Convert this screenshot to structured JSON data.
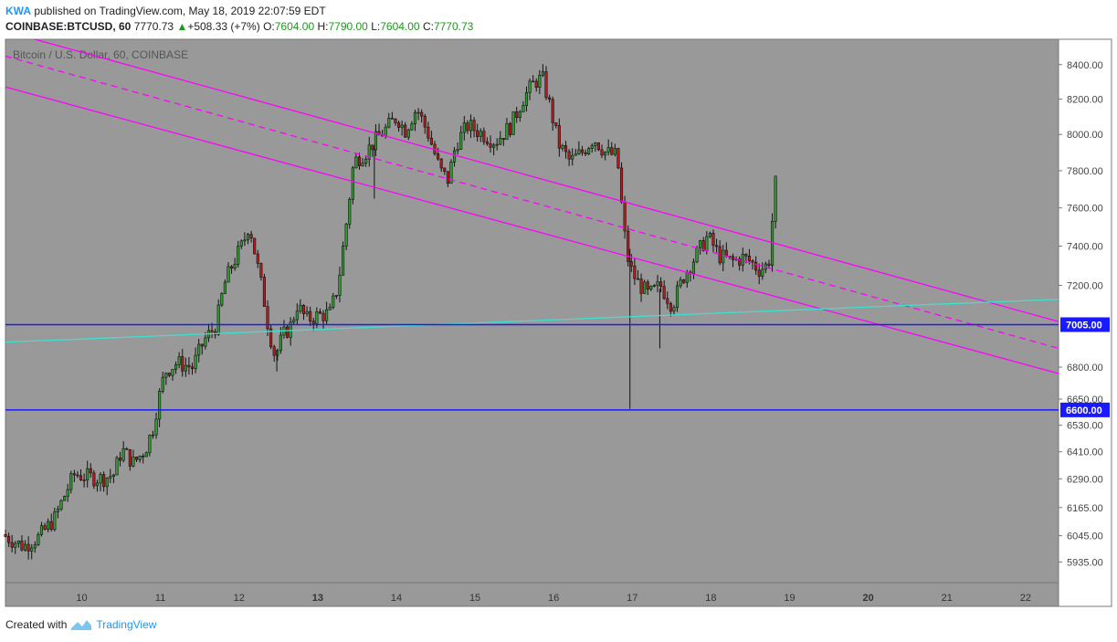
{
  "header": {
    "publisher": "KWA",
    "published_text": " published on TradingView.com, May 18, 2019 22:07:59 EDT",
    "symbol": "COINBASE:BTCUSD, 60",
    "last": "7770.73",
    "change": "+508.33 (+7%)",
    "change_arrow": "▲",
    "o_label": "O:",
    "o_value": "7604.00",
    "h_label": "H:",
    "h_value": "7790.00",
    "l_label": "L:",
    "l_value": "7604.00",
    "c_label": "C:",
    "c_value": "7770.73"
  },
  "footer": {
    "created_with": "Created with",
    "brand": "TradingView"
  },
  "chart_data": {
    "type": "candlestick",
    "title": "Bitcoin / U.S. Dollar, 60, COINBASE",
    "background": "#999999",
    "up_color": "#2e9e2e",
    "down_color": "#b71c1c",
    "x_ticks": [
      "10",
      "11",
      "12",
      "13",
      "14",
      "15",
      "16",
      "17",
      "18",
      "19",
      "20",
      "21",
      "22"
    ],
    "x_tick_bold": [
      "13",
      "20"
    ],
    "x_range_days": [
      9.03,
      22.42
    ],
    "y_ticks": [
      5935,
      6045,
      6165,
      6290,
      6410,
      6530,
      6650,
      6800,
      7200,
      7400,
      7600,
      7800,
      8000,
      8200,
      8400
    ],
    "y_tick_labels": [
      "5935.00",
      "6045.00",
      "6165.00",
      "6290.00",
      "6410.00",
      "6530.00",
      "6650.00",
      "6800.00",
      "7200.00",
      "7400.00",
      "7600.00",
      "7800.00",
      "8000.00",
      "8200.00",
      "8400.00"
    ],
    "y_scale": "log",
    "y_range": [
      5850,
      8550
    ],
    "path": [
      [
        9.03,
        6050
      ],
      [
        9.3,
        6000
      ],
      [
        9.5,
        6040
      ],
      [
        9.7,
        6120
      ],
      [
        9.85,
        6240
      ],
      [
        9.95,
        6310
      ],
      [
        10.1,
        6300
      ],
      [
        10.3,
        6290
      ],
      [
        10.45,
        6310
      ],
      [
        10.55,
        6420
      ],
      [
        10.7,
        6360
      ],
      [
        10.85,
        6420
      ],
      [
        10.95,
        6520
      ],
      [
        11.0,
        6620
      ],
      [
        11.1,
        6780
      ],
      [
        11.25,
        6820
      ],
      [
        11.45,
        6800
      ],
      [
        11.6,
        6930
      ],
      [
        11.75,
        7000
      ],
      [
        11.85,
        7200
      ],
      [
        11.95,
        7300
      ],
      [
        12.1,
        7420
      ],
      [
        12.17,
        7520
      ],
      [
        12.25,
        7350
      ],
      [
        12.35,
        7150
      ],
      [
        12.42,
        6980
      ],
      [
        12.5,
        6850
      ],
      [
        12.6,
        6950
      ],
      [
        12.7,
        7000
      ],
      [
        12.78,
        7100
      ],
      [
        12.9,
        7030
      ],
      [
        13.05,
        7050
      ],
      [
        13.2,
        7060
      ],
      [
        13.3,
        7200
      ],
      [
        13.4,
        7500
      ],
      [
        13.5,
        7850
      ],
      [
        13.65,
        7900
      ],
      [
        13.8,
        7980
      ],
      [
        13.95,
        8050
      ],
      [
        14.05,
        8100
      ],
      [
        14.15,
        8020
      ],
      [
        14.3,
        8150
      ],
      [
        14.45,
        8000
      ],
      [
        14.6,
        7800
      ],
      [
        14.7,
        7750
      ],
      [
        14.8,
        7950
      ],
      [
        14.95,
        8050
      ],
      [
        15.15,
        8000
      ],
      [
        15.3,
        7960
      ],
      [
        15.5,
        8050
      ],
      [
        15.65,
        8200
      ],
      [
        15.8,
        8300
      ],
      [
        15.9,
        8320
      ],
      [
        16.0,
        8150
      ],
      [
        16.1,
        7950
      ],
      [
        16.25,
        7850
      ],
      [
        16.4,
        7900
      ],
      [
        16.55,
        7980
      ],
      [
        16.7,
        7900
      ],
      [
        16.85,
        7880
      ],
      [
        16.93,
        7500
      ],
      [
        17.0,
        7300
      ],
      [
        17.1,
        7220
      ],
      [
        17.25,
        7150
      ],
      [
        17.4,
        7200
      ],
      [
        17.55,
        7100
      ],
      [
        17.7,
        7250
      ],
      [
        17.85,
        7350
      ],
      [
        18.0,
        7450
      ],
      [
        18.15,
        7350
      ],
      [
        18.3,
        7320
      ],
      [
        18.45,
        7340
      ],
      [
        18.55,
        7320
      ],
      [
        18.65,
        7280
      ],
      [
        18.75,
        7300
      ],
      [
        18.8,
        7350
      ],
      [
        18.85,
        7770
      ]
    ],
    "wick_extremes": [
      [
        16.97,
        6605
      ],
      [
        12.48,
        6780
      ],
      [
        13.72,
        7650
      ],
      [
        17.35,
        6890
      ]
    ],
    "levels": [
      {
        "label": "7005.00",
        "value": 7005,
        "color": "#1a1aff"
      },
      {
        "label": "6600.00",
        "value": 6600,
        "color": "#1a1aff"
      }
    ],
    "trendlines": [
      {
        "color": "#ff00ff",
        "style": "solid",
        "from": [
          9.4,
          8550
        ],
        "to": [
          22.42,
          7020
        ]
      },
      {
        "color": "#ff00ff",
        "style": "dashed",
        "from": [
          9.03,
          8450
        ],
        "to": [
          22.42,
          6890
        ]
      },
      {
        "color": "#ff00ff",
        "style": "solid",
        "from": [
          9.03,
          8270
        ],
        "to": [
          22.42,
          6770
        ]
      },
      {
        "color": "#40e0d0",
        "style": "solid",
        "from": [
          9.03,
          6920
        ],
        "to": [
          22.42,
          7130
        ]
      }
    ]
  }
}
